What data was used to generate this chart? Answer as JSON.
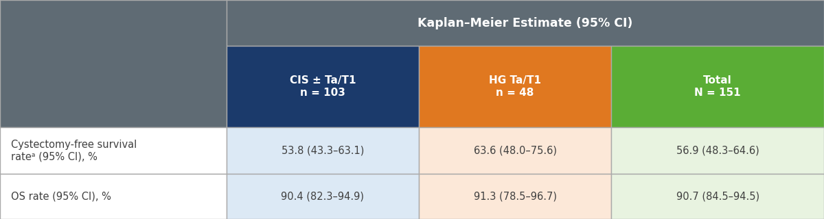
{
  "title_header": "Kaplan–Meier Estimate (95% CI)",
  "col_headers": [
    "CIS ± Ta/T1\nn = 103",
    "HG Ta/T1\nn = 48",
    "Total\nN = 151"
  ],
  "row_labels": [
    "Cystectomy-free survival\nrateᵃ (95% CI), %",
    "OS rate (95% CI), %"
  ],
  "data": [
    [
      "53.8 (43.3–63.1)",
      "63.6 (48.0–75.6)",
      "56.9 (48.3–64.6)"
    ],
    [
      "90.4 (82.3–94.9)",
      "91.3 (78.5–96.7)",
      "90.7 (84.5–94.5)"
    ]
  ],
  "header_bg": "#5f6b74",
  "header_text_color": "#ffffff",
  "col1_header_bg": "#1b3a6b",
  "col2_header_bg": "#e07820",
  "col3_header_bg": "#5aad35",
  "col1_cell_bg": "#dce9f5",
  "col2_cell_bg": "#fce8d8",
  "col3_cell_bg": "#e8f3e0",
  "row_label_bg": "#ffffff",
  "cell_text_color": "#404040",
  "row_label_text_color": "#404040",
  "border_color": "#aaaaaa",
  "figsize": [
    12.0,
    3.2
  ],
  "dpi": 100
}
